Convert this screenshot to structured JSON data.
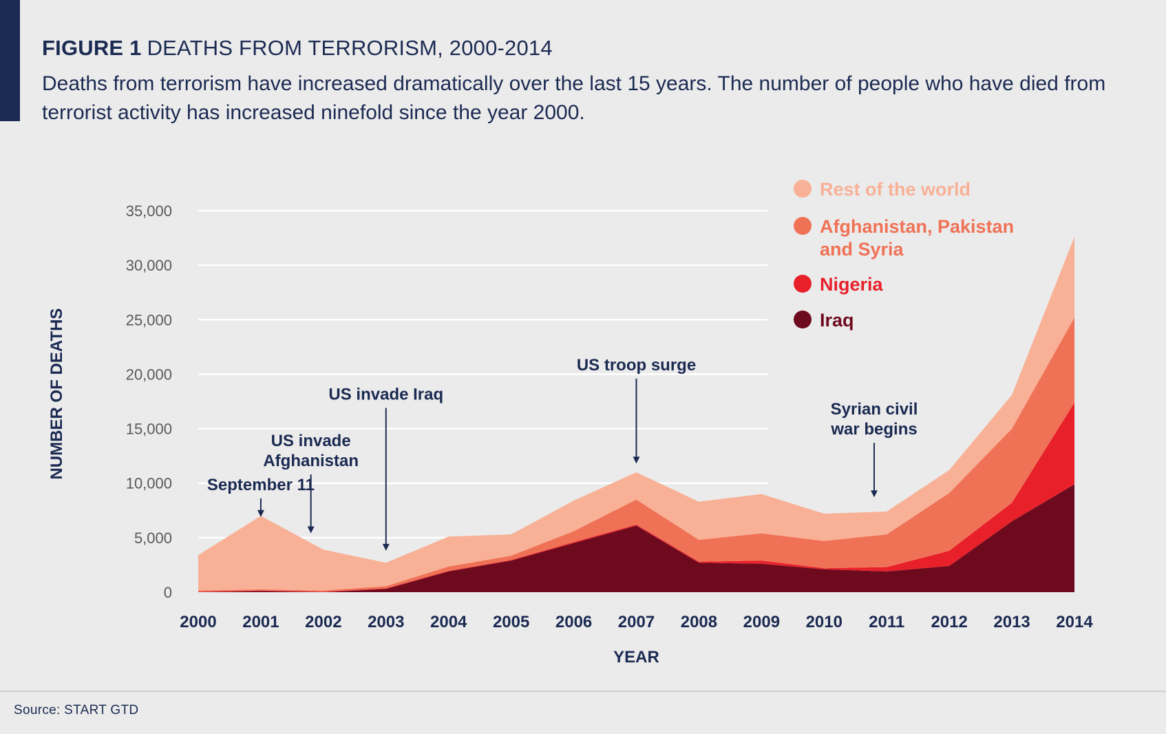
{
  "header": {
    "figure_label": "FIGURE 1",
    "figure_name": "DEATHS FROM TERRORISM, 2000-2014",
    "subtitle": "Deaths from terrorism have increased dramatically over the last 15 years. The number of people who have died from terrorist activity has increased ninefold since the year 2000."
  },
  "footer": {
    "source": "Source: START GTD"
  },
  "colors": {
    "background": "#ebebeb",
    "text": "#1b2a52",
    "gridline": "#ffffff",
    "axis_text": "#5a5a5a"
  },
  "chart_data": {
    "type": "area",
    "stacked": true,
    "xlabel": "YEAR",
    "ylabel": "NUMBER OF DEATHS",
    "ylim": [
      0,
      35000
    ],
    "yticks": [
      0,
      5000,
      10000,
      15000,
      20000,
      25000,
      30000,
      35000
    ],
    "ytick_labels": [
      "0",
      "5,000",
      "10,000",
      "15,000",
      "20,000",
      "25,000",
      "30,000",
      "35,000"
    ],
    "x": [
      2000,
      2001,
      2002,
      2003,
      2004,
      2005,
      2006,
      2007,
      2008,
      2009,
      2010,
      2011,
      2012,
      2013,
      2014
    ],
    "xtick_labels": [
      "2000",
      "2001",
      "2002",
      "2003",
      "2004",
      "2005",
      "2006",
      "2007",
      "2008",
      "2009",
      "2010",
      "2011",
      "2012",
      "2013",
      "2014"
    ],
    "grid": true,
    "legend_position": "top-right",
    "series": [
      {
        "name": "Iraq",
        "color": "#6e0a1e",
        "values": [
          0,
          100,
          0,
          300,
          1900,
          2900,
          4500,
          6100,
          2700,
          2600,
          2100,
          1900,
          2400,
          6500,
          9900
        ]
      },
      {
        "name": "Nigeria",
        "color": "#e8202a",
        "values": [
          50,
          50,
          50,
          50,
          50,
          50,
          100,
          100,
          100,
          300,
          100,
          400,
          1400,
          1700,
          7500
        ]
      },
      {
        "name": "Afghanistan, Pakistan and Syria",
        "color": "#f07256",
        "values": [
          100,
          100,
          100,
          200,
          400,
          400,
          1000,
          2300,
          2000,
          2500,
          2500,
          3000,
          5300,
          6800,
          7800
        ]
      },
      {
        "name": "Rest of the world",
        "color": "#f8b196",
        "values": [
          3250,
          6750,
          3750,
          2150,
          2750,
          1950,
          2800,
          2500,
          3500,
          3600,
          2500,
          2100,
          2100,
          3100,
          7400
        ]
      }
    ],
    "legend": [
      {
        "label": "Rest of the world",
        "color": "#f8b196"
      },
      {
        "label": "Afghanistan, Pakistan and Syria",
        "label_lines": [
          "Afghanistan, Pakistan",
          "and Syria"
        ],
        "color": "#f07256"
      },
      {
        "label": "Nigeria",
        "color": "#e8202a"
      },
      {
        "label": "Iraq",
        "color": "#6e0a1e"
      }
    ],
    "annotations": [
      {
        "lines": [
          "September 11"
        ],
        "x": 2001,
        "arrow_from": 8600,
        "arrow_to": 6900
      },
      {
        "lines": [
          "US invade",
          "Afghanistan"
        ],
        "x": 2001.8,
        "arrow_from": 10800,
        "arrow_to": 5400
      },
      {
        "lines": [
          "US invade Iraq"
        ],
        "x": 2003,
        "arrow_from": 16900,
        "arrow_to": 3800
      },
      {
        "lines": [
          "US troop surge"
        ],
        "x": 2007,
        "arrow_from": 19600,
        "arrow_to": 11800
      },
      {
        "lines": [
          "Syrian civil",
          "war begins"
        ],
        "x": 2010.8,
        "arrow_from": 13700,
        "arrow_to": 8700
      }
    ]
  }
}
